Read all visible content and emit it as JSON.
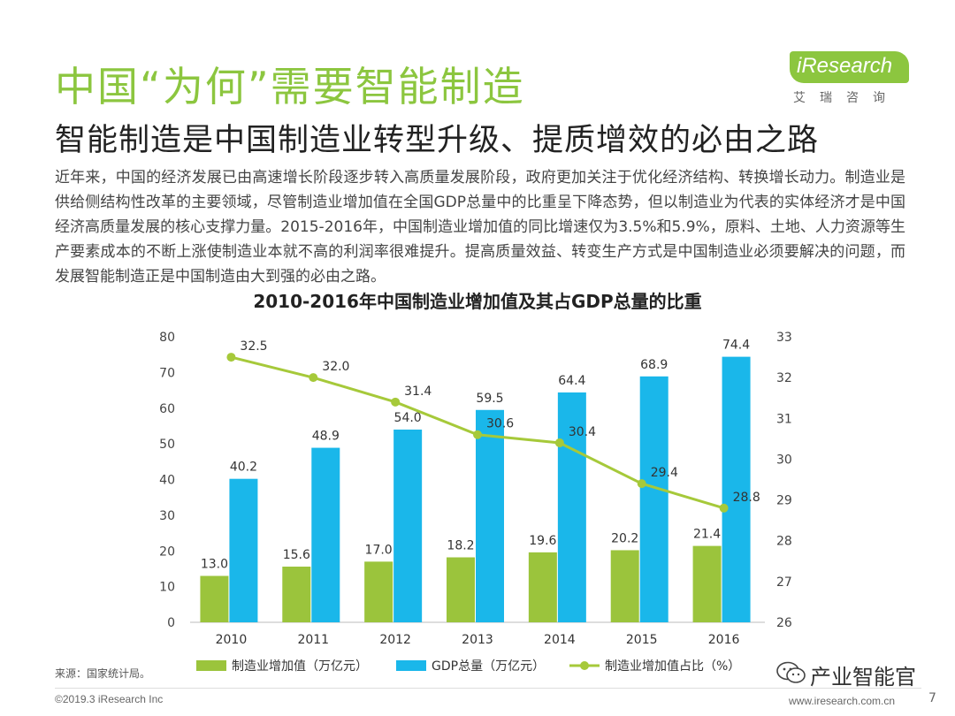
{
  "header": {
    "title": "中国“为何”需要智能制造",
    "subtitle": "智能制造是中国制造业转型升级、提质增效的必由之路"
  },
  "logo": {
    "brand": "iResearch",
    "sub": "艾瑞咨询"
  },
  "body_text": "近年来，中国的经济发展已由高速增长阶段逐步转入高质量发展阶段，政府更加关注于优化经济结构、转换增长动力。制造业是供给侧结构性改革的主要领域，尽管制造业增加值在全国GDP总量中的比重呈下降态势，但以制造业为代表的实体经济才是中国经济高质量发展的核心支撑力量。2015-2016年，中国制造业增加值的同比增速仅为3.5%和5.9%，原料、土地、人力资源等生产要素成本的不断上涨使制造业本就不高的利润率很难提升。提高质量效益、转变生产方式是中国制造业必须要解决的问题，而发展智能制造正是中国制造由大到强的必由之路。",
  "chart_data": {
    "type": "bar",
    "title": "2010-2016年中国制造业增加值及其占GDP总量的比重",
    "categories": [
      "2010",
      "2011",
      "2012",
      "2013",
      "2014",
      "2015",
      "2016"
    ],
    "series": [
      {
        "name": "制造业增加值（万亿元）",
        "type": "bar",
        "axis": "left",
        "color": "#9bc43c",
        "values": [
          13.0,
          15.6,
          17.0,
          18.2,
          19.6,
          20.2,
          21.4
        ],
        "labels": [
          "13.0",
          "15.6",
          "17.0",
          "18.2",
          "19.6",
          "20.2",
          "21.4"
        ]
      },
      {
        "name": "GDP总量（万亿元）",
        "type": "bar",
        "axis": "left",
        "color": "#1ab7ea",
        "values": [
          40.2,
          48.9,
          54.0,
          59.5,
          64.4,
          68.9,
          74.4
        ],
        "labels": [
          "40.2",
          "48.9",
          "54.0",
          "59.5",
          "64.4",
          "68.9",
          "74.4"
        ]
      },
      {
        "name": "制造业增加值占比（%）",
        "type": "line",
        "axis": "right",
        "color": "#a6c93a",
        "values": [
          32.5,
          32.0,
          31.4,
          30.6,
          30.4,
          29.4,
          28.8
        ],
        "labels": [
          "32.5",
          "32.0",
          "31.4",
          "30.6",
          "30.4",
          "29.4",
          "28.8"
        ]
      }
    ],
    "ylim_left": [
      0,
      80
    ],
    "yticks_left": [
      "0",
      "10",
      "20",
      "30",
      "40",
      "50",
      "60",
      "70",
      "80"
    ],
    "ylim_right": [
      26,
      33
    ],
    "yticks_right": [
      "26",
      "27",
      "28",
      "29",
      "30",
      "31",
      "32",
      "33"
    ],
    "legend_position": "bottom"
  },
  "footer": {
    "source": "来源：国家统计局。",
    "copyright": "©2019.3 iResearch Inc",
    "website": "www.iresearch.com.cn",
    "page": "7",
    "wechat": "产业智能官"
  },
  "colors": {
    "accent": "#8cc63f",
    "blue": "#1ab7ea"
  }
}
